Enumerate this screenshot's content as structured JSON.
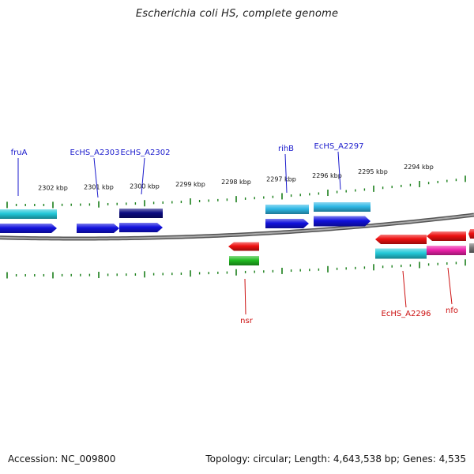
{
  "title": "Escherichia coli HS, complete genome",
  "footer": {
    "accession": "Accession: NC_009800",
    "summary": "Topology: circular; Length: 4,643,538 bp; Genes: 4,535"
  },
  "colors": {
    "backbone": "#888888",
    "tick": "#1a7f1a",
    "top_label": "#1a1acc",
    "bottom_label": "#cc1111",
    "cyan": "#22c8d8",
    "blue": "#1111dd",
    "navy": "#0a0a80",
    "sky": "#2eb8e6",
    "red": "#ee1111",
    "green": "#22bb22",
    "magenta": "#ee22aa"
  },
  "scale_labels": [
    "2302 kbp",
    "2301 kbp",
    "2300 kbp",
    "2299 kbp",
    "2298 kbp",
    "2297 kbp",
    "2296 kbp",
    "2295 kbp",
    "2294 kbp"
  ],
  "top_gene_labels": [
    "fruA",
    "EcHS_A2303",
    "EcHS_A2302",
    "rihB",
    "EcHS_A2297"
  ],
  "bottom_gene_labels": [
    "nsr",
    "EcHS_A2296",
    "nfo"
  ]
}
